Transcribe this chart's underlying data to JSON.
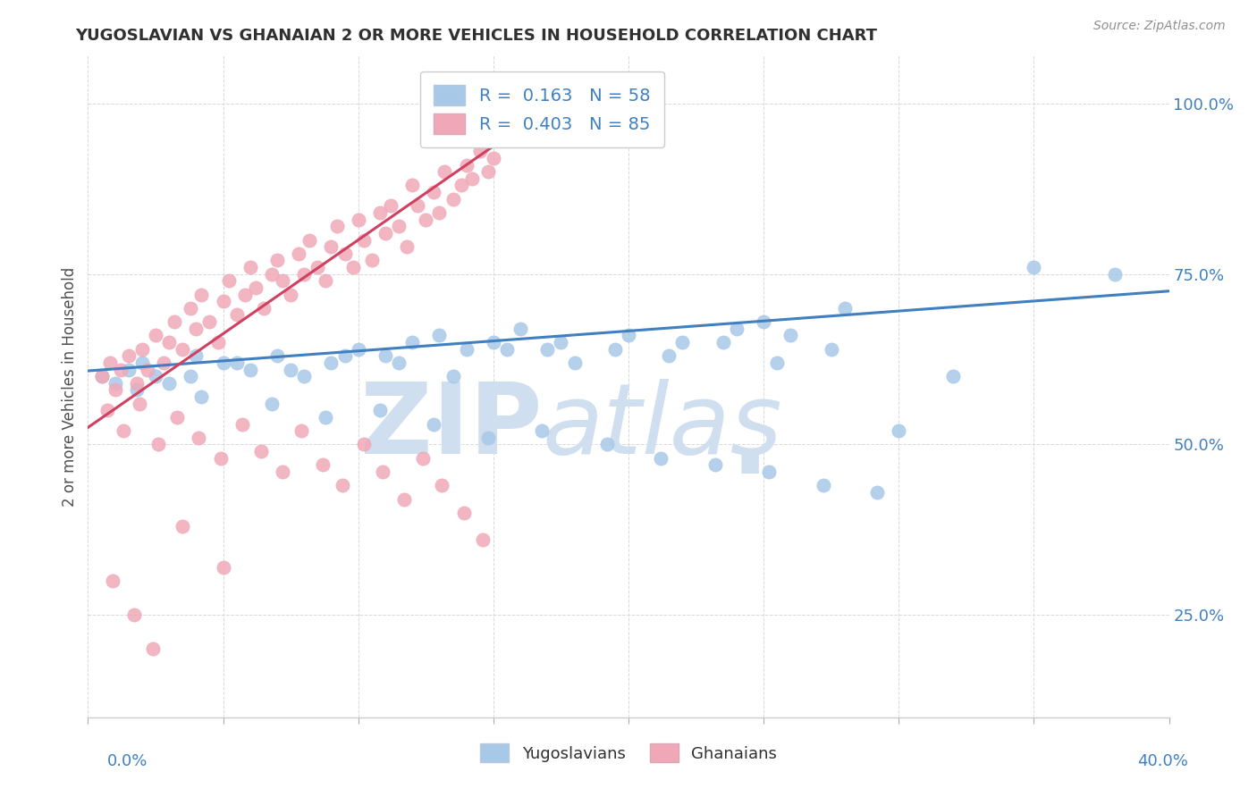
{
  "title": "YUGOSLAVIAN VS GHANAIAN 2 OR MORE VEHICLES IN HOUSEHOLD CORRELATION CHART",
  "source": "Source: ZipAtlas.com",
  "ylabel": "2 or more Vehicles in Household",
  "ytick_labels": [
    "25.0%",
    "50.0%",
    "75.0%",
    "100.0%"
  ],
  "ytick_values": [
    0.25,
    0.5,
    0.75,
    1.0
  ],
  "xlim": [
    0.0,
    0.4
  ],
  "ylim": [
    0.1,
    1.07
  ],
  "legend_blue_R": "0.163",
  "legend_blue_N": "58",
  "legend_pink_R": "0.403",
  "legend_pink_N": "85",
  "blue_color": "#a8c8e8",
  "pink_color": "#f0a8b8",
  "blue_line_color": "#4080c0",
  "pink_line_color": "#d04060",
  "watermark_color": "#d0dff0",
  "title_color": "#303030",
  "source_color": "#909090",
  "ylabel_color": "#505050",
  "ytick_color": "#4080c0",
  "xtick_color": "#4080c0",
  "grid_color": "#d8d8d8",
  "blue_x": [
    0.005,
    0.01,
    0.015,
    0.02,
    0.025,
    0.03,
    0.04,
    0.05,
    0.06,
    0.07,
    0.08,
    0.09,
    0.1,
    0.11,
    0.12,
    0.13,
    0.14,
    0.15,
    0.16,
    0.17,
    0.18,
    0.2,
    0.22,
    0.24,
    0.25,
    0.26,
    0.28,
    0.3,
    0.32,
    0.35,
    0.038,
    0.055,
    0.075,
    0.095,
    0.115,
    0.135,
    0.155,
    0.175,
    0.195,
    0.215,
    0.235,
    0.255,
    0.275,
    0.018,
    0.042,
    0.068,
    0.088,
    0.108,
    0.128,
    0.148,
    0.168,
    0.192,
    0.212,
    0.232,
    0.252,
    0.272,
    0.292,
    0.38
  ],
  "blue_y": [
    0.6,
    0.59,
    0.61,
    0.62,
    0.6,
    0.59,
    0.63,
    0.62,
    0.61,
    0.63,
    0.6,
    0.62,
    0.64,
    0.63,
    0.65,
    0.66,
    0.64,
    0.65,
    0.67,
    0.64,
    0.62,
    0.66,
    0.65,
    0.67,
    0.68,
    0.66,
    0.7,
    0.52,
    0.6,
    0.76,
    0.6,
    0.62,
    0.61,
    0.63,
    0.62,
    0.6,
    0.64,
    0.65,
    0.64,
    0.63,
    0.65,
    0.62,
    0.64,
    0.58,
    0.57,
    0.56,
    0.54,
    0.55,
    0.53,
    0.51,
    0.52,
    0.5,
    0.48,
    0.47,
    0.46,
    0.44,
    0.43,
    0.75
  ],
  "pink_x": [
    0.005,
    0.008,
    0.01,
    0.012,
    0.015,
    0.018,
    0.02,
    0.022,
    0.025,
    0.028,
    0.03,
    0.032,
    0.035,
    0.038,
    0.04,
    0.042,
    0.045,
    0.048,
    0.05,
    0.052,
    0.055,
    0.058,
    0.06,
    0.062,
    0.065,
    0.068,
    0.07,
    0.072,
    0.075,
    0.078,
    0.08,
    0.082,
    0.085,
    0.088,
    0.09,
    0.092,
    0.095,
    0.098,
    0.1,
    0.102,
    0.105,
    0.108,
    0.11,
    0.112,
    0.115,
    0.118,
    0.12,
    0.122,
    0.125,
    0.128,
    0.13,
    0.132,
    0.135,
    0.138,
    0.14,
    0.142,
    0.145,
    0.148,
    0.15,
    0.152,
    0.007,
    0.013,
    0.019,
    0.026,
    0.033,
    0.041,
    0.049,
    0.057,
    0.064,
    0.072,
    0.079,
    0.087,
    0.094,
    0.102,
    0.109,
    0.117,
    0.124,
    0.131,
    0.139,
    0.146,
    0.009,
    0.017,
    0.024,
    0.035,
    0.05
  ],
  "pink_y": [
    0.6,
    0.62,
    0.58,
    0.61,
    0.63,
    0.59,
    0.64,
    0.61,
    0.66,
    0.62,
    0.65,
    0.68,
    0.64,
    0.7,
    0.67,
    0.72,
    0.68,
    0.65,
    0.71,
    0.74,
    0.69,
    0.72,
    0.76,
    0.73,
    0.7,
    0.75,
    0.77,
    0.74,
    0.72,
    0.78,
    0.75,
    0.8,
    0.76,
    0.74,
    0.79,
    0.82,
    0.78,
    0.76,
    0.83,
    0.8,
    0.77,
    0.84,
    0.81,
    0.85,
    0.82,
    0.79,
    0.88,
    0.85,
    0.83,
    0.87,
    0.84,
    0.9,
    0.86,
    0.88,
    0.91,
    0.89,
    0.93,
    0.9,
    0.92,
    0.95,
    0.55,
    0.52,
    0.56,
    0.5,
    0.54,
    0.51,
    0.48,
    0.53,
    0.49,
    0.46,
    0.52,
    0.47,
    0.44,
    0.5,
    0.46,
    0.42,
    0.48,
    0.44,
    0.4,
    0.36,
    0.3,
    0.25,
    0.2,
    0.38,
    0.32
  ]
}
